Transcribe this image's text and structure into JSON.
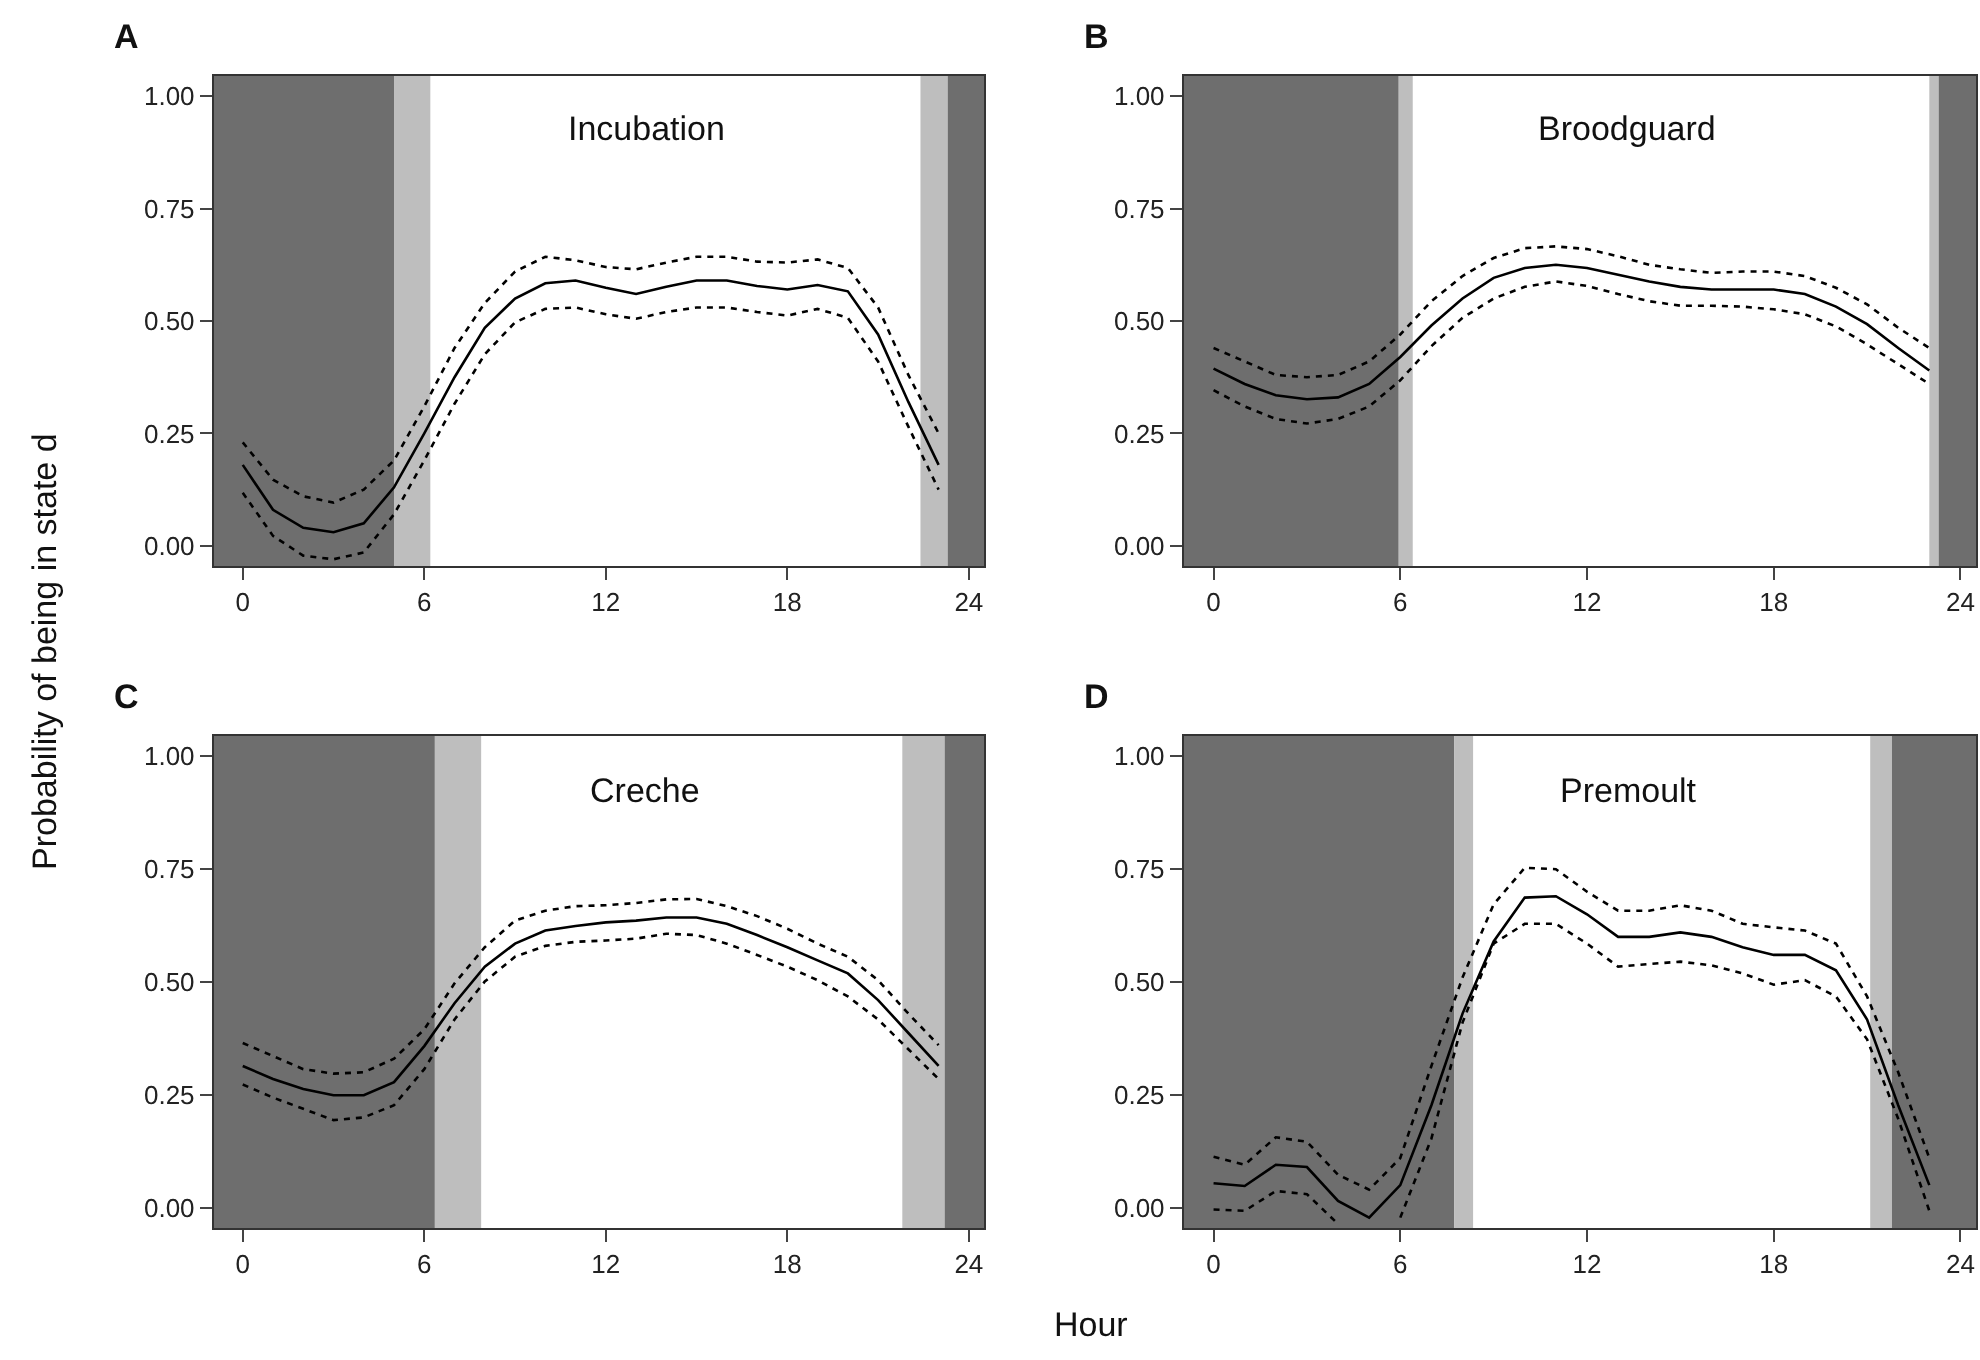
{
  "chart_data": [
    {
      "type": "line",
      "title": "A",
      "annotations": [
        "Incubation"
      ],
      "ylabel": "Probability of being in state d",
      "x": [
        0,
        1,
        2,
        3,
        4,
        5,
        6,
        7,
        8,
        9,
        10,
        11,
        12,
        13,
        14,
        15,
        16,
        17,
        18,
        19,
        20,
        21,
        22,
        23
      ],
      "series": [
        {
          "color": "#000000",
          "line_style": "solid",
          "values": [
            0.18,
            0.08,
            0.04,
            0.03,
            0.05,
            0.13,
            0.25,
            0.375,
            0.485,
            0.55,
            0.584,
            0.59,
            0.574,
            0.56,
            0.576,
            0.59,
            0.59,
            0.578,
            0.57,
            0.58,
            0.566,
            0.47,
            0.32,
            0.18
          ]
        },
        {
          "color": "#000000",
          "line_style": "dotted",
          "values": [
            0.23,
            0.147,
            0.11,
            0.096,
            0.125,
            0.19,
            0.31,
            0.44,
            0.54,
            0.61,
            0.643,
            0.635,
            0.62,
            0.615,
            0.63,
            0.643,
            0.643,
            0.632,
            0.63,
            0.637,
            0.618,
            0.53,
            0.38,
            0.25
          ]
        },
        {
          "color": "#000000",
          "line_style": "dotted",
          "values": [
            0.118,
            0.022,
            -0.022,
            -0.03,
            -0.015,
            0.07,
            0.19,
            0.316,
            0.426,
            0.497,
            0.527,
            0.53,
            0.515,
            0.505,
            0.52,
            0.53,
            0.53,
            0.52,
            0.512,
            0.527,
            0.507,
            0.41,
            0.265,
            0.125
          ]
        }
      ],
      "bands": [
        {
          "axis": "x",
          "from": -0.95,
          "to": 5,
          "color": "#6e6e6e"
        },
        {
          "axis": "x",
          "from": 5,
          "to": 6.2,
          "color": "#bebebe"
        },
        {
          "axis": "x",
          "from": 22.4,
          "to": 23.3,
          "color": "#bebebe"
        },
        {
          "axis": "x",
          "from": 23.3,
          "to": 24.5,
          "color": "#6e6e6e"
        }
      ],
      "xlim": [
        -0.95,
        24.5
      ],
      "xticks": [
        0,
        6,
        12,
        18,
        24
      ],
      "ylim": [
        -0.045,
        1.045
      ],
      "yticks": [
        {
          "value": 0,
          "label": "0.00"
        },
        {
          "value": 0.25,
          "label": "0.25"
        },
        {
          "value": 0.5,
          "label": "0.50"
        },
        {
          "value": 0.75,
          "label": "0.75"
        },
        {
          "value": 1,
          "label": "1.00"
        }
      ],
      "grid": false
    },
    {
      "type": "line",
      "title": "B",
      "annotations": [
        "Broodguard"
      ],
      "x": [
        0,
        1,
        2,
        3,
        4,
        5,
        6,
        7,
        8,
        9,
        10,
        11,
        12,
        13,
        14,
        15,
        16,
        17,
        18,
        19,
        20,
        21,
        22,
        23
      ],
      "series": [
        {
          "color": "#000000",
          "line_style": "solid",
          "values": [
            0.394,
            0.36,
            0.335,
            0.326,
            0.33,
            0.36,
            0.42,
            0.49,
            0.55,
            0.596,
            0.618,
            0.625,
            0.618,
            0.603,
            0.588,
            0.576,
            0.57,
            0.57,
            0.57,
            0.56,
            0.532,
            0.493,
            0.44,
            0.39
          ]
        },
        {
          "color": "#000000",
          "line_style": "dotted",
          "values": [
            0.44,
            0.41,
            0.38,
            0.375,
            0.38,
            0.41,
            0.47,
            0.544,
            0.6,
            0.64,
            0.662,
            0.666,
            0.66,
            0.644,
            0.625,
            0.615,
            0.607,
            0.61,
            0.61,
            0.6,
            0.574,
            0.537,
            0.485,
            0.44
          ]
        },
        {
          "color": "#000000",
          "line_style": "dotted",
          "values": [
            0.346,
            0.31,
            0.282,
            0.272,
            0.282,
            0.31,
            0.368,
            0.444,
            0.507,
            0.55,
            0.576,
            0.588,
            0.578,
            0.56,
            0.544,
            0.534,
            0.534,
            0.532,
            0.526,
            0.515,
            0.488,
            0.448,
            0.404,
            0.36
          ]
        }
      ],
      "bands": [
        {
          "axis": "x",
          "from": -0.95,
          "to": 5.95,
          "color": "#6e6e6e"
        },
        {
          "axis": "x",
          "from": 5.95,
          "to": 6.4,
          "color": "#bebebe"
        },
        {
          "axis": "x",
          "from": 23.0,
          "to": 23.3,
          "color": "#bebebe"
        },
        {
          "axis": "x",
          "from": 23.3,
          "to": 24.5,
          "color": "#6e6e6e"
        }
      ],
      "xlim": [
        -0.95,
        24.5
      ],
      "xticks": [
        0,
        6,
        12,
        18,
        24
      ],
      "ylim": [
        -0.045,
        1.045
      ],
      "yticks": [
        {
          "value": 0,
          "label": "0.00"
        },
        {
          "value": 0.25,
          "label": "0.25"
        },
        {
          "value": 0.5,
          "label": "0.50"
        },
        {
          "value": 0.75,
          "label": "0.75"
        },
        {
          "value": 1,
          "label": "1.00"
        }
      ],
      "grid": false
    },
    {
      "type": "line",
      "title": "C",
      "annotations": [
        "Creche"
      ],
      "x": [
        0,
        1,
        2,
        3,
        4,
        5,
        6,
        7,
        8,
        9,
        10,
        11,
        12,
        13,
        14,
        15,
        16,
        17,
        18,
        19,
        20,
        21,
        22,
        23
      ],
      "series": [
        {
          "color": "#000000",
          "line_style": "solid",
          "values": [
            0.314,
            0.285,
            0.263,
            0.249,
            0.249,
            0.278,
            0.358,
            0.453,
            0.534,
            0.585,
            0.614,
            0.624,
            0.632,
            0.636,
            0.643,
            0.643,
            0.629,
            0.604,
            0.577,
            0.548,
            0.519,
            0.46,
            0.387,
            0.314
          ]
        },
        {
          "color": "#000000",
          "line_style": "dotted",
          "values": [
            0.365,
            0.336,
            0.307,
            0.297,
            0.3,
            0.33,
            0.395,
            0.497,
            0.577,
            0.636,
            0.658,
            0.668,
            0.67,
            0.675,
            0.683,
            0.684,
            0.668,
            0.646,
            0.618,
            0.585,
            0.556,
            0.504,
            0.43,
            0.36
          ]
        },
        {
          "color": "#000000",
          "line_style": "dotted",
          "values": [
            0.273,
            0.244,
            0.219,
            0.194,
            0.2,
            0.227,
            0.307,
            0.417,
            0.501,
            0.556,
            0.58,
            0.589,
            0.592,
            0.596,
            0.607,
            0.604,
            0.585,
            0.56,
            0.534,
            0.504,
            0.468,
            0.417,
            0.351,
            0.285
          ]
        }
      ],
      "bands": [
        {
          "axis": "x",
          "from": -0.95,
          "to": 6.35,
          "color": "#6e6e6e"
        },
        {
          "axis": "x",
          "from": 6.35,
          "to": 7.88,
          "color": "#bebebe"
        },
        {
          "axis": "x",
          "from": 21.8,
          "to": 23.2,
          "color": "#bebebe"
        },
        {
          "axis": "x",
          "from": 23.2,
          "to": 24.5,
          "color": "#6e6e6e"
        }
      ],
      "xlim": [
        -0.95,
        24.5
      ],
      "xticks": [
        0,
        6,
        12,
        18,
        24
      ],
      "xlabel": "Hour",
      "ylim": [
        -0.045,
        1.045
      ],
      "yticks": [
        {
          "value": 0,
          "label": "0.00"
        },
        {
          "value": 0.25,
          "label": "0.25"
        },
        {
          "value": 0.5,
          "label": "0.50"
        },
        {
          "value": 0.75,
          "label": "0.75"
        },
        {
          "value": 1,
          "label": "1.00"
        }
      ],
      "grid": false
    },
    {
      "type": "line",
      "title": "D",
      "annotations": [
        "Premoult"
      ],
      "x": [
        0,
        1,
        2,
        3,
        4,
        5,
        6,
        7,
        8,
        9,
        10,
        11,
        12,
        13,
        14,
        15,
        16,
        17,
        18,
        19,
        20,
        21,
        22,
        23
      ],
      "series": [
        {
          "color": "#000000",
          "line_style": "solid",
          "values": [
            0.054,
            0.048,
            0.095,
            0.09,
            0.015,
            -0.022,
            0.05,
            0.227,
            0.43,
            0.59,
            0.687,
            0.69,
            0.65,
            0.6,
            0.6,
            0.61,
            0.6,
            0.577,
            0.56,
            0.56,
            0.526,
            0.417,
            0.227,
            0.05
          ]
        },
        {
          "color": "#000000",
          "line_style": "dotted",
          "values": [
            0.113,
            0.095,
            0.156,
            0.146,
            0.073,
            0.04,
            0.11,
            0.314,
            0.51,
            0.672,
            0.753,
            0.75,
            0.7,
            0.658,
            0.658,
            0.67,
            0.658,
            0.629,
            0.621,
            0.614,
            0.585,
            0.468,
            0.3,
            0.11
          ]
        },
        {
          "color": "#000000",
          "line_style": "dotted",
          "values": [
            -0.004,
            -0.007,
            0.037,
            0.03,
            -0.036,
            null,
            -0.022,
            0.153,
            0.41,
            0.585,
            0.629,
            0.629,
            0.585,
            0.534,
            0.54,
            0.545,
            0.537,
            0.519,
            0.494,
            0.504,
            0.468,
            0.373,
            0.197,
            -0.007
          ]
        }
      ],
      "bands": [
        {
          "axis": "x",
          "from": -0.95,
          "to": 7.73,
          "color": "#6e6e6e"
        },
        {
          "axis": "x",
          "from": 7.73,
          "to": 8.34,
          "color": "#bebebe"
        },
        {
          "axis": "x",
          "from": 21.1,
          "to": 21.8,
          "color": "#bebebe"
        },
        {
          "axis": "x",
          "from": 21.8,
          "to": 24.5,
          "color": "#6e6e6e"
        }
      ],
      "xlim": [
        -0.95,
        24.5
      ],
      "xticks": [
        0,
        6,
        12,
        18,
        24
      ],
      "ylim": [
        -0.045,
        1.045
      ],
      "yticks": [
        {
          "value": 0,
          "label": "0.00"
        },
        {
          "value": 0.25,
          "label": "0.25"
        },
        {
          "value": 0.5,
          "label": "0.50"
        },
        {
          "value": 0.75,
          "label": "0.75"
        },
        {
          "value": 1,
          "label": "1.00"
        }
      ],
      "grid": false
    }
  ]
}
